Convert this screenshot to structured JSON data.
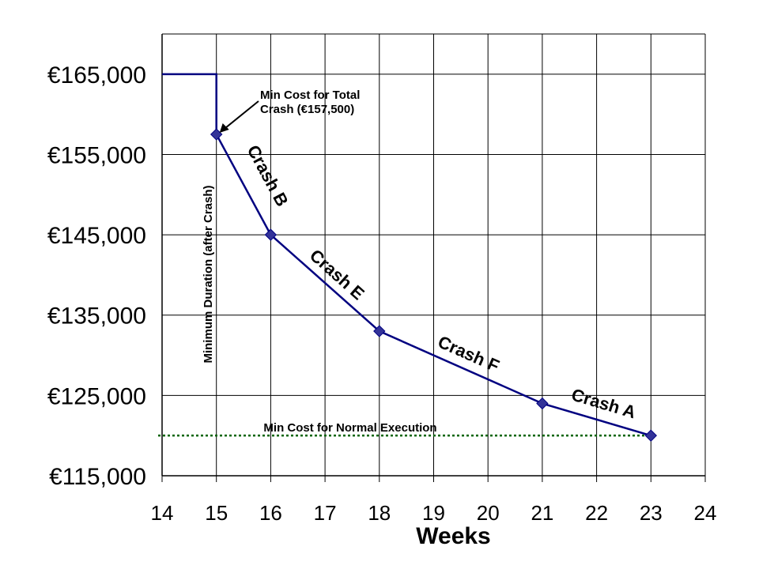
{
  "chart_data": {
    "type": "line",
    "xlabel": "Weeks",
    "ylabel": "",
    "title": "",
    "x_ticks": [
      14,
      15,
      16,
      17,
      18,
      19,
      20,
      21,
      22,
      23,
      24
    ],
    "x_tick_labels": [
      "14",
      "15",
      "16",
      "17",
      "18",
      "19",
      "20",
      "21",
      "22",
      "23",
      "24"
    ],
    "y_ticks": [
      115000,
      125000,
      135000,
      145000,
      155000,
      165000
    ],
    "y_tick_labels": [
      "€115,000",
      "€125,000",
      "€135,000",
      "€145,000",
      "€155,000",
      "€165,000"
    ],
    "ylim": [
      115000,
      170000
    ],
    "grid": true,
    "series": [
      {
        "name": "",
        "points": [
          {
            "x": 15,
            "y": 157500
          },
          {
            "x": 16,
            "y": 145000
          },
          {
            "x": 18,
            "y": 133000
          },
          {
            "x": 21,
            "y": 124000
          },
          {
            "x": 23,
            "y": 120000
          }
        ]
      }
    ],
    "boundary_line": [
      {
        "x": 14,
        "y": 165000
      },
      {
        "x": 15,
        "y": 165000
      },
      {
        "x": 15,
        "y": 157500
      }
    ],
    "normal_cost_line": {
      "y": 120000,
      "label": "Min Cost for Normal Execution"
    },
    "segment_labels": [
      {
        "text": "Crash B",
        "x": 15.85,
        "y": 152000
      },
      {
        "text": "Crash E",
        "x": 17.15,
        "y": 139500
      },
      {
        "text": "Crash F",
        "x": 19.6,
        "y": 129500
      },
      {
        "text": "Crash A",
        "x": 22.1,
        "y": 123300
      }
    ],
    "annotations": {
      "min_total_crash_line1": "Min Cost for Total",
      "min_total_crash_line2": "Crash (€157,500)",
      "min_duration": "Minimum Duration (after Crash)"
    },
    "colors": {
      "line": "#000080",
      "marker": "#333399",
      "dotted": "#006400",
      "grid": "#000000"
    }
  }
}
